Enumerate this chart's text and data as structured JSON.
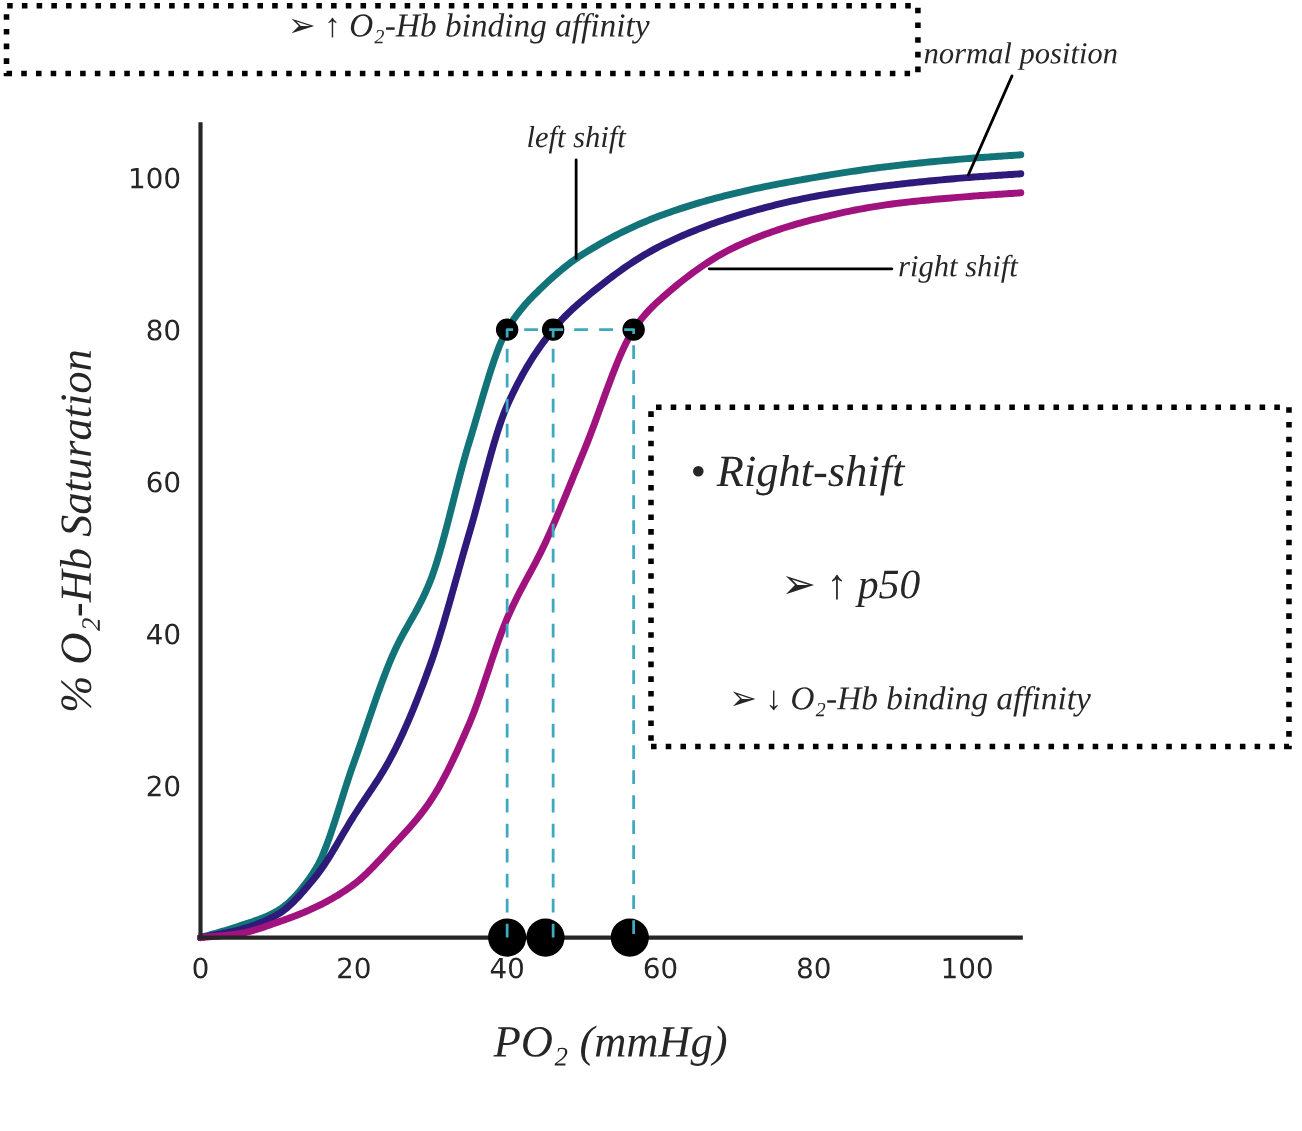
{
  "chart_data": {
    "type": "line",
    "xlabel": "PO₂ (mmHg)",
    "ylabel": "% O₂-Hb Saturation",
    "xlim": [
      0,
      107
    ],
    "ylim": [
      0,
      107
    ],
    "xticks": [
      0,
      20,
      40,
      60,
      80,
      100
    ],
    "yticks": [
      {
        "value": 20,
        "label": "20"
      },
      {
        "value": 40,
        "label": "40"
      },
      {
        "value": 60,
        "label": "60"
      },
      {
        "value": 80,
        "label": "80"
      },
      {
        "value": 100,
        "label": "100"
      }
    ],
    "series": [
      {
        "color": "#127478",
        "line_style": "solid",
        "x": [
          0,
          5,
          10,
          15,
          20,
          25,
          30,
          35,
          40,
          45,
          50,
          60,
          70,
          80,
          90,
          100,
          107
        ],
        "values": [
          0,
          1.5,
          3.5,
          9,
          23,
          37,
          47,
          65,
          80,
          86,
          90,
          95,
          98,
          100,
          101.5,
          102.5,
          103
        ]
      },
      {
        "color": "#2e1a7a",
        "line_style": "solid",
        "x": [
          0,
          5,
          10,
          15,
          20,
          25,
          30,
          35,
          40,
          46,
          50,
          60,
          70,
          80,
          90,
          100,
          107
        ],
        "values": [
          0,
          1,
          3,
          8,
          16,
          24,
          36,
          53,
          70,
          80,
          84,
          91,
          95,
          97.5,
          99,
          100,
          100.5
        ]
      },
      {
        "color": "#a0137e",
        "line_style": "solid",
        "x": [
          0,
          5,
          10,
          15,
          20,
          25,
          30,
          35,
          40,
          45,
          50,
          56.5,
          60,
          70,
          80,
          90,
          100,
          107
        ],
        "values": [
          0,
          0.5,
          2,
          4,
          7,
          12,
          18,
          28,
          42,
          52,
          64,
          80,
          84,
          91,
          94.5,
          96.5,
          97.5,
          98
        ]
      },
      {
        "color": "#3fa9bf",
        "line_style": "dashed",
        "x": [
          40,
          40,
          56.5,
          56.5
        ],
        "values": [
          0,
          80,
          80,
          0
        ]
      },
      {
        "color": "#3fa9bf",
        "line_style": "dashed",
        "x": [
          46,
          46
        ],
        "values": [
          0,
          80
        ]
      },
      {
        "type": "scatter",
        "color": "#000000",
        "marker": "circle",
        "x": [
          40,
          46,
          56.5
        ],
        "values": [
          80,
          80,
          80
        ]
      },
      {
        "type": "scatter",
        "color": "#000000",
        "marker": "circle",
        "x": [
          40,
          45,
          56
        ],
        "values": [
          0,
          0,
          0
        ]
      }
    ],
    "annotations": [
      {
        "text": "left shift",
        "x": 49,
        "y": 89
      },
      {
        "text": "normal position",
        "x": 100,
        "y": 100
      },
      {
        "text": "right shift",
        "x": 66,
        "y": 88
      },
      "➢ ↑ O₂-Hb binding affinity",
      "• Right-shift",
      "➢ ↑ p50",
      "➢ ↓ O₂-Hb binding affinity"
    ]
  }
}
